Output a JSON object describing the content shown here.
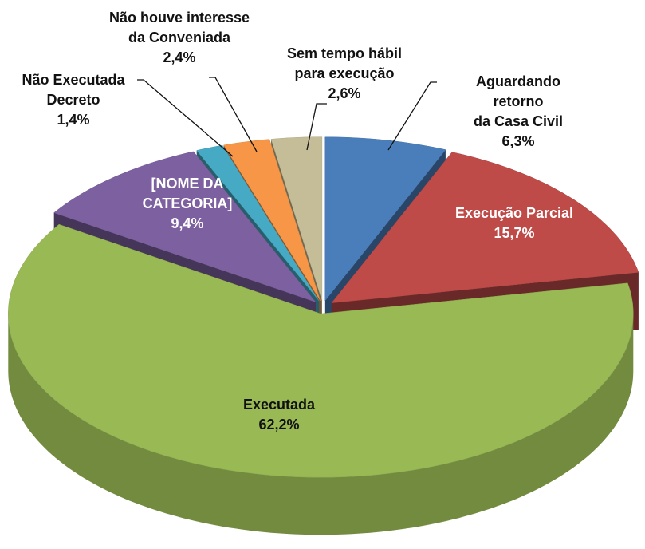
{
  "chart_data": {
    "type": "pie",
    "categories": [
      "Aguardando retorno\nda Casa Civil",
      "Execução Parcial",
      "Executada",
      "[NOME DA\nCATEGORIA]",
      "Não Executada\nDecreto",
      "Não houve interesse\nda Conveniada",
      "Sem tempo hábil\npara execução"
    ],
    "values": [
      6.3,
      15.7,
      62.2,
      9.4,
      1.4,
      2.4,
      2.6
    ],
    "value_labels": [
      "6,3%",
      "15,7%",
      "62,2%",
      "9,4%",
      "1,4%",
      "2,4%",
      "2,6%"
    ],
    "colors": [
      "#4a7ebb",
      "#be4b48",
      "#98b954",
      "#7d60a0",
      "#46aac5",
      "#f79646",
      "#c4bd97"
    ]
  }
}
